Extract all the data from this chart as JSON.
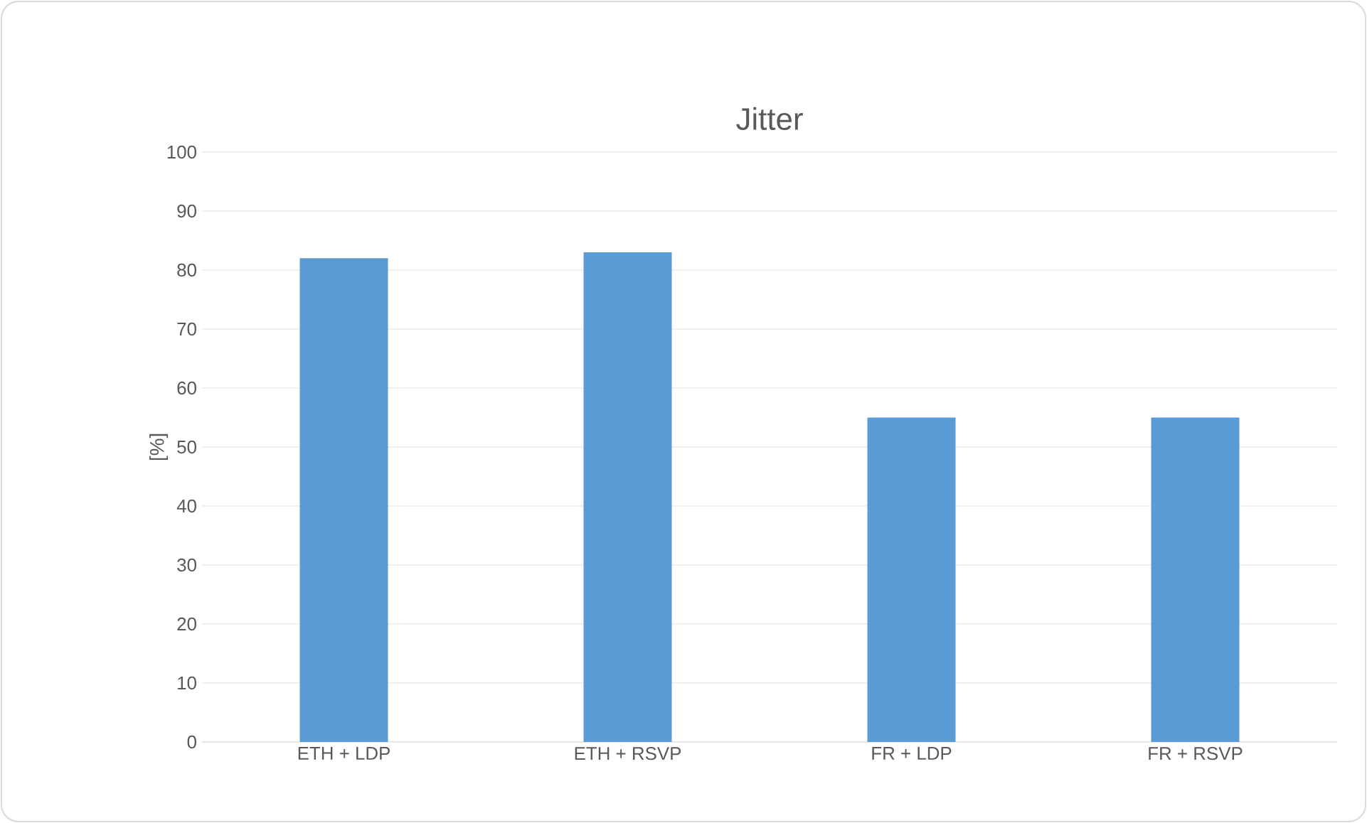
{
  "chart_data": {
    "type": "bar",
    "title": "Jitter",
    "ylabel": "[%]",
    "categories": [
      "ETH + LDP",
      "ETH + RSVP",
      "FR + LDP",
      "FR + RSVP"
    ],
    "values": [
      82,
      83,
      55,
      55
    ],
    "color": "#5b9bd5",
    "ylim": [
      0,
      100
    ],
    "yticks": [
      0,
      10,
      20,
      30,
      40,
      50,
      60,
      70,
      80,
      90,
      100
    ],
    "grid": "y"
  }
}
